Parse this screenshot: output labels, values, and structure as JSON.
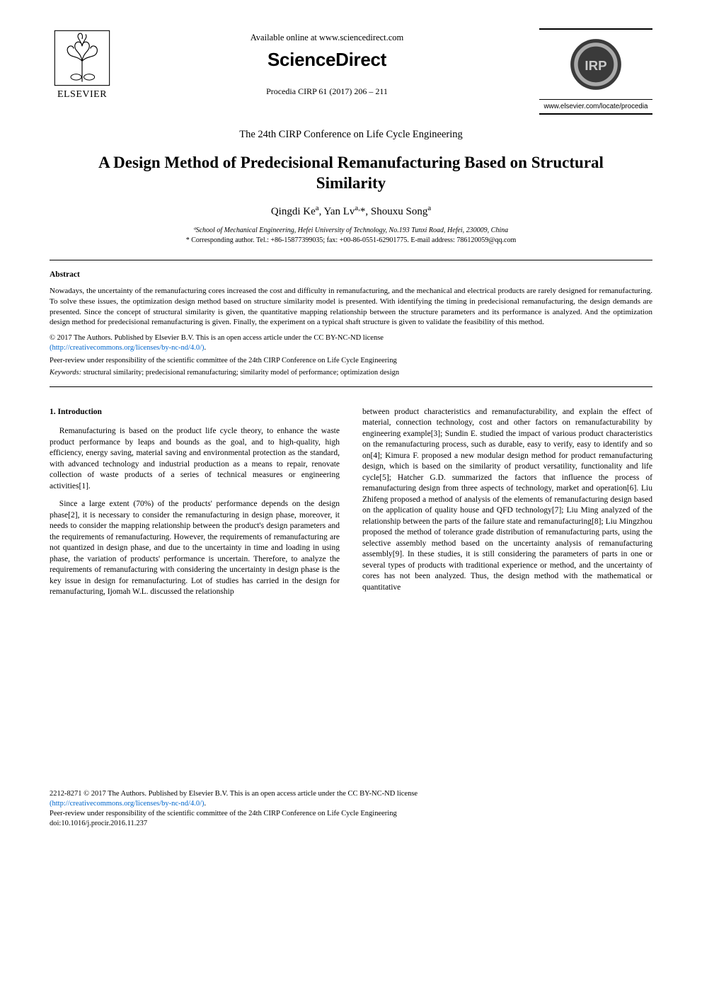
{
  "header": {
    "available": "Available online at www.sciencedirect.com",
    "brand": "ScienceDirect",
    "procedia": "Procedia CIRP 61 (2017) 206 – 211",
    "elsevier": "ELSEVIER",
    "cirp_url": "www.elsevier.com/locate/procedia",
    "cirp_label": "IRP"
  },
  "conference": "The 24th CIRP Conference on Life Cycle Engineering",
  "title": "A Design Method of Predecisional Remanufacturing Based on Structural Similarity",
  "authors_html": "Qingdi Ke<sup>a</sup>, Yan Lv<sup>a,</sup>*, Shouxu Song<sup>a</sup>",
  "affiliation": "ªSchool of Mechanical Engineering, Hefei University of Technology, No.193 Tunxi Road, Hefei, 230009, China",
  "corresponding": "* Corresponding author. Tel.: +86-15877399035; fax: +00-86-0551-62901775. E-mail address: 786120059@qq.com",
  "abstract_heading": "Abstract",
  "abstract": "Nowadays, the uncertainty of the remanufacturing cores increased the cost and difficulty in remanufacturing, and the mechanical and electrical products are rarely designed for remanufacturing. To solve these issues, the optimization design method based on structure similarity model is presented. With identifying the timing in predecisional remanufacturing, the design demands are presented. Since the concept of structural similarity is given, the quantitative mapping relationship between the structure parameters and its performance is analyzed. And the optimization design method for predecisional remanufacturing is given. Finally, the experiment on a typical shaft structure is given to validate the feasibility of this method.",
  "license_line1": "© 2017 The Authors. Published by Elsevier B.V. This is an open access article under the CC BY-NC-ND license",
  "license_link_text": "(http://creativecommons.org/licenses/by-nc-nd/4.0/)",
  "peer_review": "Peer-review under responsibility of the scientific committee of the 24th CIRP Conference on Life Cycle Engineering",
  "keywords_label": "Keywords:",
  "keywords": " structural similarity; predecisional remanufacturing; similarity model of performance; optimization design",
  "section1_heading": "1. Introduction",
  "col1_p1": "Remanufacturing is based on the product life cycle theory, to enhance the waste product performance by leaps and bounds as the goal, and to high-quality, high efficiency, energy saving, material saving and environmental protection as the standard, with advanced technology and industrial production as a means to repair, renovate collection of waste products of a series of technical measures or engineering activities[1].",
  "col1_p2": "Since a large extent (70%) of the products' performance depends on the design phase[2], it is necessary to consider the remanufacturing in design phase, moreover, it needs to consider the mapping relationship between the product's design parameters and the requirements of remanufacturing. However, the requirements of remanufacturing are not quantized in design phase, and due to the uncertainty in time and loading in using phase, the variation of products' performance is uncertain. Therefore, to analyze the requirements of remanufacturing with considering the uncertainty in design phase is the key issue in design for remanufacturing. Lot of studies has carried in the design for remanufacturing, Ijomah W.L. discussed the relationship",
  "col2_p1": "between product characteristics and remanufacturability, and explain the effect of material, connection technology, cost and other factors on remanufacturability by engineering example[3]; Sundin E. studied the impact of various product characteristics on the remanufacturing process, such as durable, easy to verify, easy to identify and so on[4]; Kimura F. proposed a new modular design method for product remanufacturing design, which is based on the similarity of product versatility, functionality and life cycle[5]; Hatcher G.D. summarized the factors that influence the process of remanufacturing design from three aspects of technology, market and operation[6]. Liu Zhifeng proposed a method of analysis of the elements of remanufacturing design based on the application of quality house and QFD technology[7]; Liu Ming analyzed of the relationship between the parts of the failure state and remanufacturing[8]; Liu Mingzhou proposed the method of tolerance grade distribution of remanufacturing parts, using the selective assembly method based on the uncertainty analysis of remanufacturing assembly[9]. In these studies, it is still considering the parameters of parts in one or several types of products with traditional experience or method, and the uncertainty of cores has not been analyzed. Thus, the design method with the mathematical or quantitative",
  "footer": {
    "issn_line": "2212-8271 © 2017 The Authors. Published by Elsevier B.V. This is an open access article under the CC BY-NC-ND license",
    "link": "(http://creativecommons.org/licenses/by-nc-nd/4.0/)",
    "peer": "Peer-review under responsibility of the scientific committee of the 24th CIRP Conference on Life Cycle Engineering",
    "doi": "doi:10.1016/j.procir.2016.11.237"
  },
  "colors": {
    "link": "#0066cc",
    "text": "#000000",
    "logo_orange": "#e8792b",
    "cirp_fill": "#3a3a3a"
  }
}
